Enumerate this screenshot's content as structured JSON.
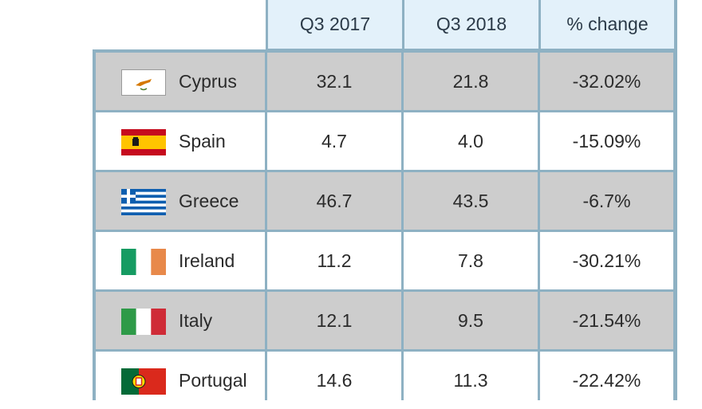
{
  "table": {
    "headers": [
      "Q3 2017",
      "Q3 2018",
      "% change"
    ],
    "rows": [
      {
        "country": "Cyprus",
        "flag_icon": "cyprus-flag-icon",
        "q3_2017": "32.1",
        "q3_2018": "21.8",
        "change": "-32.02%"
      },
      {
        "country": "Spain",
        "flag_icon": "spain-flag-icon",
        "q3_2017": "4.7",
        "q3_2018": "4.0",
        "change": "-15.09%"
      },
      {
        "country": "Greece",
        "flag_icon": "greece-flag-icon",
        "q3_2017": "46.7",
        "q3_2018": "43.5",
        "change": "-6.7%"
      },
      {
        "country": "Ireland",
        "flag_icon": "ireland-flag-icon",
        "q3_2017": "11.2",
        "q3_2018": "7.8",
        "change": "-30.21%"
      },
      {
        "country": "Italy",
        "flag_icon": "italy-flag-icon",
        "q3_2017": "12.1",
        "q3_2018": "9.5",
        "change": "-21.54%"
      },
      {
        "country": "Portugal",
        "flag_icon": "portugal-flag-icon",
        "q3_2017": "14.6",
        "q3_2018": "11.3",
        "change": "-22.42%"
      }
    ]
  },
  "colors": {
    "header_bg": "#e3f1fa",
    "grid_lines": "#8eb1c3",
    "shaded_row": "#cdcdcd",
    "plain_row": "#ffffff"
  }
}
